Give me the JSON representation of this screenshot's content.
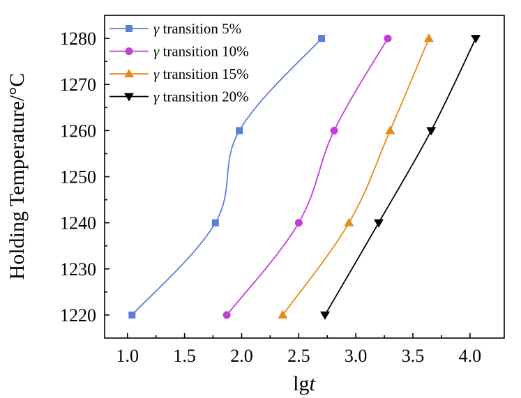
{
  "chart_data": {
    "type": "line",
    "title": "",
    "xlabel_prefix": "lg",
    "xlabel_var": "t",
    "ylabel": "Holding Temperature/°C",
    "xlim": [
      0.8,
      4.3
    ],
    "ylim": [
      1215,
      1285
    ],
    "xticks": [
      1.0,
      1.5,
      2.0,
      2.5,
      3.0,
      3.5,
      4.0
    ],
    "xtick_labels": [
      "1.0",
      "1.5",
      "2.0",
      "2.5",
      "3.0",
      "3.5",
      "4.0"
    ],
    "yticks": [
      1220,
      1230,
      1240,
      1250,
      1260,
      1270,
      1280
    ],
    "ytick_labels": [
      "1220",
      "1230",
      "1240",
      "1250",
      "1260",
      "1270",
      "1280"
    ],
    "grid": false,
    "legend_position": "top-left",
    "series": [
      {
        "name_symbol": "γ",
        "name_text": " transition 5%",
        "color": "#5b7fd9",
        "marker": "square",
        "x": [
          1.04,
          1.77,
          1.98,
          2.7
        ],
        "y": [
          1220,
          1240,
          1260,
          1280
        ]
      },
      {
        "name_symbol": "γ",
        "name_text": " transition 10%",
        "color": "#c23ed6",
        "marker": "circle",
        "x": [
          1.87,
          2.5,
          2.81,
          3.28
        ],
        "y": [
          1220,
          1240,
          1260,
          1280
        ]
      },
      {
        "name_symbol": "γ",
        "name_text": " transition 15%",
        "color": "#e88a1a",
        "marker": "triangle-up",
        "x": [
          2.36,
          2.94,
          3.3,
          3.64
        ],
        "y": [
          1220,
          1240,
          1260,
          1280
        ]
      },
      {
        "name_symbol": "γ",
        "name_text": " transition 20%",
        "color": "#000000",
        "marker": "triangle-down",
        "x": [
          2.73,
          3.2,
          3.66,
          4.05
        ],
        "y": [
          1220,
          1240,
          1260,
          1280
        ]
      }
    ]
  }
}
